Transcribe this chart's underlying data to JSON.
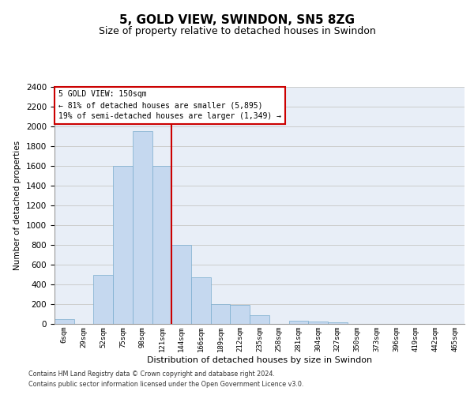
{
  "title": "5, GOLD VIEW, SWINDON, SN5 8ZG",
  "subtitle": "Size of property relative to detached houses in Swindon",
  "xlabel": "Distribution of detached houses by size in Swindon",
  "ylabel": "Number of detached properties",
  "bar_values": [
    50,
    0,
    500,
    1600,
    1950,
    1600,
    800,
    475,
    200,
    190,
    90,
    0,
    30,
    25,
    20,
    0,
    0,
    0,
    0,
    0,
    0
  ],
  "categories": [
    "6sqm",
    "29sqm",
    "52sqm",
    "75sqm",
    "98sqm",
    "121sqm",
    "144sqm",
    "166sqm",
    "189sqm",
    "212sqm",
    "235sqm",
    "258sqm",
    "281sqm",
    "304sqm",
    "327sqm",
    "350sqm",
    "373sqm",
    "396sqm",
    "419sqm",
    "442sqm",
    "465sqm"
  ],
  "bar_color": "#c5d8ef",
  "bar_edgecolor": "#7aacce",
  "vline_x": 5.5,
  "vline_color": "#cc0000",
  "annotation_text": "5 GOLD VIEW: 150sqm\n← 81% of detached houses are smaller (5,895)\n19% of semi-detached houses are larger (1,349) →",
  "annotation_box_color": "#ffffff",
  "annotation_box_edgecolor": "#cc0000",
  "ylim": [
    0,
    2400
  ],
  "yticks": [
    0,
    200,
    400,
    600,
    800,
    1000,
    1200,
    1400,
    1600,
    1800,
    2000,
    2200,
    2400
  ],
  "grid_color": "#cccccc",
  "bg_color": "#e8eef7",
  "footer1": "Contains HM Land Registry data © Crown copyright and database right 2024.",
  "footer2": "Contains public sector information licensed under the Open Government Licence v3.0.",
  "title_fontsize": 11,
  "subtitle_fontsize": 9
}
